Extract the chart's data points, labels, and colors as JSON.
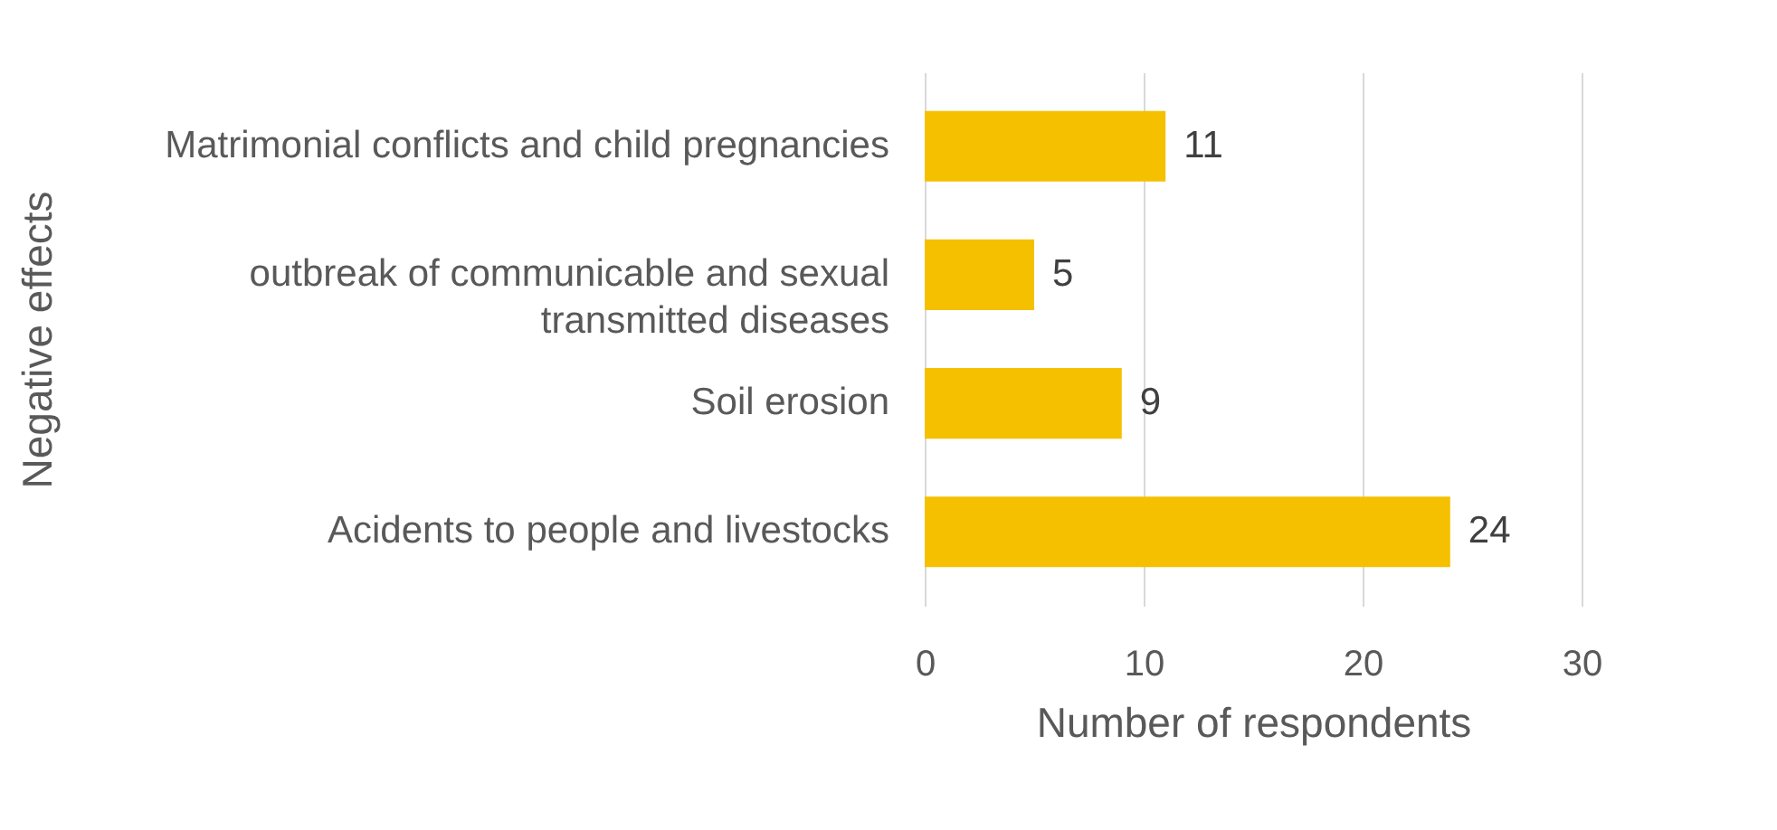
{
  "chart_data": {
    "type": "bar",
    "orientation": "horizontal",
    "categories": [
      "Matrimonial conflicts and child pregnancies",
      "outbreak of communicable and sexual transmitted diseases",
      "Soil erosion",
      "Acidents to people and livestocks"
    ],
    "values": [
      11,
      5,
      9,
      24
    ],
    "color": "#f5c000",
    "xlabel": "Number of respondents",
    "ylabel": "Negative effects",
    "xlim": [
      0,
      30
    ],
    "xticks": [
      0,
      10,
      20,
      30
    ],
    "grid": "x",
    "data_labels": true
  }
}
